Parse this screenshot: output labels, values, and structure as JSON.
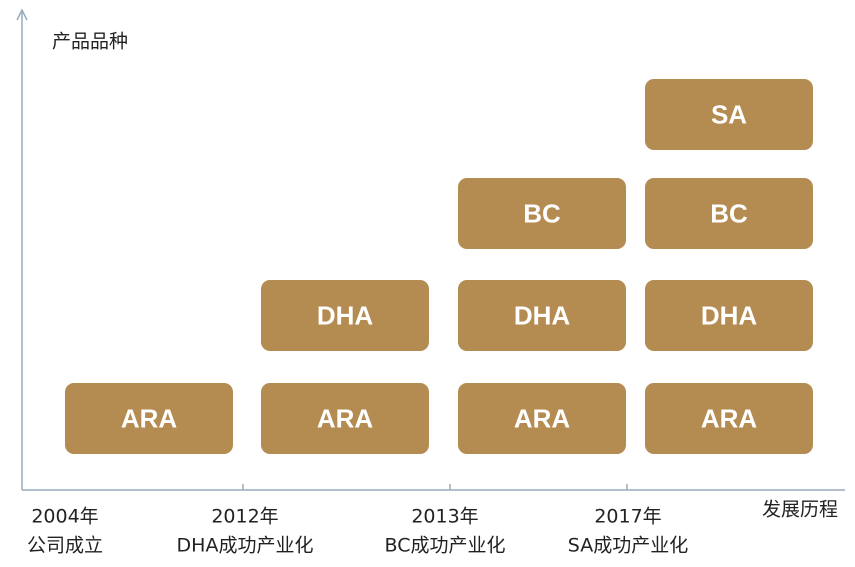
{
  "y_axis_label": "产品品种",
  "x_axis_label": "发展历程",
  "stages": [
    {
      "year": "2004年",
      "event": "公司成立",
      "products": [
        "ARA"
      ]
    },
    {
      "year": "2012年",
      "event": "DHA成功产业化",
      "products": [
        "ARA",
        "DHA"
      ]
    },
    {
      "year": "2013年",
      "event": "BC成功产业化",
      "products": [
        "ARA",
        "DHA",
        "BC"
      ]
    },
    {
      "year": "2017年",
      "event": "SA成功产业化",
      "products": [
        "ARA",
        "DHA",
        "BC",
        "SA"
      ]
    }
  ]
}
